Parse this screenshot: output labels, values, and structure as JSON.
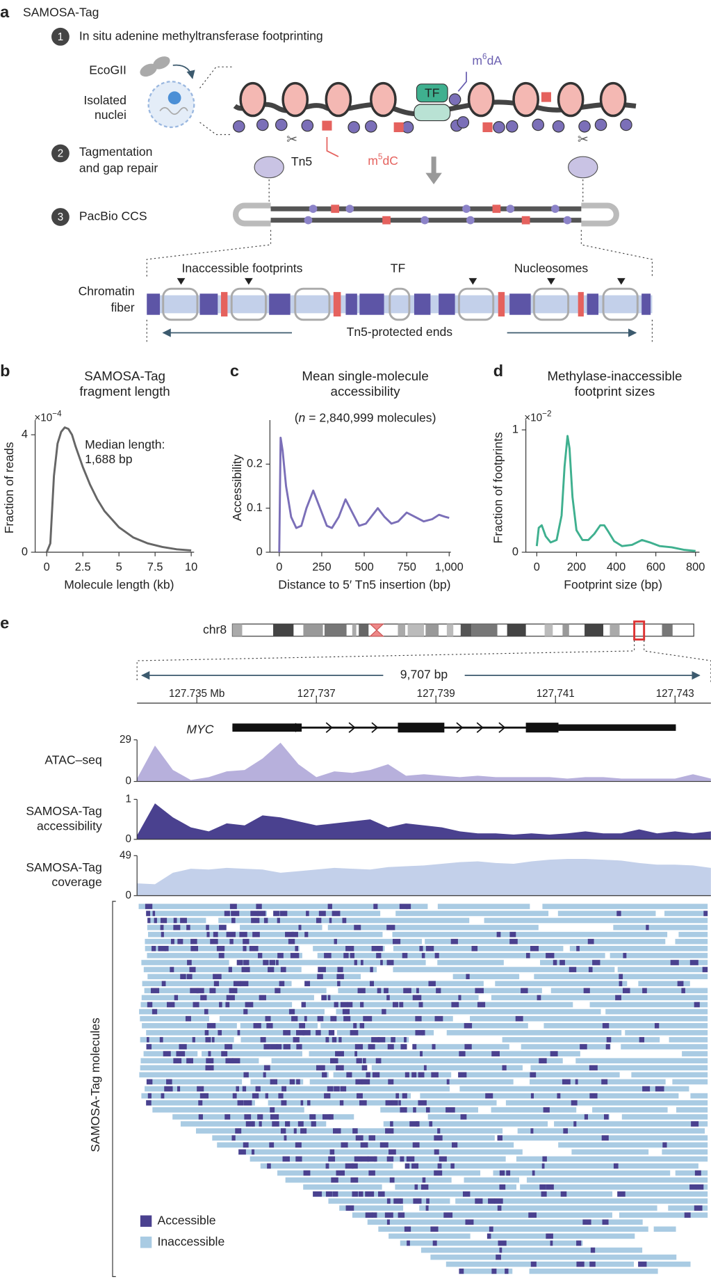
{
  "panel_a": {
    "label": "a",
    "title": "SAMOSA-Tag",
    "steps": [
      {
        "number": "1",
        "text": [
          "In situ adenine methyltransferase footprinting"
        ]
      },
      {
        "number": "2",
        "text": [
          "Tagmentation",
          "and gap repair"
        ]
      },
      {
        "number": "3",
        "text": [
          "PacBio CCS"
        ]
      }
    ],
    "enzyme": "EcoGII",
    "nuclei": [
      "Isolated",
      "nuclei"
    ],
    "m6dA": {
      "base": "m",
      "sup": "6",
      "rest": "dA"
    },
    "tf": "TF",
    "m5dC": {
      "base": "m",
      "sup": "5",
      "rest": "dC"
    },
    "tn5": "Tn5",
    "fiber_labels": [
      "Inaccessible footprints",
      "TF",
      "Nucleosomes"
    ],
    "fiber": [
      "Chromatin",
      "fiber"
    ],
    "ends": "Tn5-protected ends"
  },
  "chart_data": [
    {
      "type": "line",
      "panel": "b",
      "title": [
        "SAMOSA-Tag",
        "fragment length"
      ],
      "multiplier": {
        "base": "×10",
        "sup": "−4"
      },
      "annotation": [
        "Median length:",
        "1,688 bp"
      ],
      "xlabel": "Molecule length (kb)",
      "ylabel": "Fraction of reads",
      "x": [
        0,
        0.25,
        0.5,
        0.75,
        1,
        1.25,
        1.5,
        1.75,
        2,
        2.5,
        3,
        3.5,
        4,
        5,
        6,
        7,
        8,
        9,
        10
      ],
      "values": [
        0,
        0.3,
        2.6,
        3.7,
        4.1,
        4.25,
        4.2,
        4.0,
        3.6,
        2.9,
        2.3,
        1.8,
        1.4,
        0.85,
        0.5,
        0.3,
        0.18,
        0.1,
        0.06
      ],
      "color": "#666666",
      "xlim": [
        -0.8,
        10.2
      ],
      "ylim": [
        0,
        4.5
      ],
      "xticks": [
        0,
        2.5,
        5,
        7.5,
        10
      ],
      "yticks": [
        0,
        4
      ]
    },
    {
      "type": "line",
      "panel": "c",
      "title": [
        "Mean single-molecule",
        "accessibility"
      ],
      "subtitle": {
        "pre": "(",
        "italic": "n",
        "post": " = 2,840,999 molecules)"
      },
      "xlabel": "Distance to 5′ Tn5 insertion (bp)",
      "ylabel": "Accessibility",
      "x": [
        0,
        8,
        20,
        40,
        70,
        100,
        130,
        160,
        200,
        240,
        280,
        310,
        350,
        390,
        430,
        470,
        510,
        540,
        580,
        620,
        660,
        700,
        750,
        800,
        850,
        900,
        940,
        980,
        1000
      ],
      "values": [
        0,
        0.26,
        0.23,
        0.15,
        0.08,
        0.055,
        0.06,
        0.1,
        0.14,
        0.1,
        0.06,
        0.055,
        0.08,
        0.12,
        0.09,
        0.06,
        0.065,
        0.08,
        0.1,
        0.08,
        0.065,
        0.07,
        0.09,
        0.08,
        0.07,
        0.075,
        0.085,
        0.08,
        0.078
      ],
      "color": "#7b6fb8",
      "xlim": [
        -55,
        1010
      ],
      "ylim": [
        0,
        0.3
      ],
      "xticks": [
        0,
        250,
        500,
        750,
        {
          "value": 1000,
          "label": "1,000"
        }
      ],
      "yticks": [
        0,
        0.1,
        0.2
      ]
    },
    {
      "type": "line",
      "panel": "d",
      "title": [
        "Methylase-inaccessible",
        "footprint sizes"
      ],
      "multiplier": {
        "base": "×10",
        "sup": "−2"
      },
      "xlabel": "Footprint size (bp)",
      "ylabel": "Fraction of footprints",
      "x": [
        0,
        10,
        25,
        45,
        70,
        100,
        125,
        140,
        155,
        165,
        180,
        200,
        230,
        260,
        290,
        320,
        340,
        360,
        390,
        430,
        480,
        530,
        570,
        620,
        680,
        740,
        800
      ],
      "values": [
        0.05,
        0.2,
        0.22,
        0.13,
        0.08,
        0.1,
        0.3,
        0.7,
        0.95,
        0.85,
        0.45,
        0.18,
        0.1,
        0.1,
        0.15,
        0.22,
        0.22,
        0.17,
        0.09,
        0.05,
        0.06,
        0.1,
        0.08,
        0.05,
        0.04,
        0.02,
        0.01
      ],
      "color": "#3fb08f",
      "xlim": [
        -55,
        820
      ],
      "ylim": [
        0,
        1.08
      ],
      "xticks": [
        0,
        200,
        400,
        600,
        800
      ],
      "yticks": [
        0,
        1
      ]
    },
    {
      "type": "axis",
      "xlim": [
        127.734,
        127.7436
      ],
      "xticks": [
        {
          "value": 127.735,
          "label": "127.735 Mb"
        },
        127.737,
        127.739,
        127.741,
        127.743
      ]
    },
    {
      "type": "area",
      "label": [
        "ATAC–seq"
      ],
      "x": [
        127.734,
        127.7343,
        127.7346,
        127.7349,
        127.7352,
        127.7355,
        127.7358,
        127.7361,
        127.7364,
        127.7367,
        127.737,
        127.7373,
        127.7376,
        127.7379,
        127.7382,
        127.7385,
        127.7388,
        127.7391,
        127.7394,
        127.7397,
        127.74,
        127.7403,
        127.7406,
        127.7409,
        127.7412,
        127.7415,
        127.7418,
        127.7421,
        127.7424,
        127.7427,
        127.743,
        127.7433,
        127.7436
      ],
      "values": [
        2,
        25,
        8,
        1,
        3,
        7,
        8,
        16,
        27,
        12,
        3,
        7,
        6,
        8,
        12,
        4,
        5,
        4,
        3,
        4,
        3,
        3,
        3,
        3,
        2,
        3,
        3,
        2,
        2,
        2,
        2,
        5,
        2
      ],
      "color": "#b7b0dc",
      "xlim": [
        127.734,
        127.7436
      ],
      "ylim": [
        0,
        29
      ],
      "yticks": [
        0,
        29
      ]
    },
    {
      "type": "area",
      "label": [
        "SAMOSA-Tag",
        "accessibility"
      ],
      "x": [
        127.734,
        127.7343,
        127.7346,
        127.7349,
        127.7352,
        127.7355,
        127.7358,
        127.7361,
        127.7364,
        127.7367,
        127.737,
        127.7373,
        127.7376,
        127.7379,
        127.7382,
        127.7385,
        127.7388,
        127.7391,
        127.7394,
        127.7397,
        127.74,
        127.7403,
        127.7406,
        127.7409,
        127.7412,
        127.7415,
        127.7418,
        127.7421,
        127.7424,
        127.7427,
        127.743,
        127.7433,
        127.7436
      ],
      "values": [
        0.1,
        0.9,
        0.55,
        0.3,
        0.2,
        0.4,
        0.35,
        0.6,
        0.55,
        0.45,
        0.35,
        0.4,
        0.45,
        0.5,
        0.3,
        0.4,
        0.35,
        0.3,
        0.2,
        0.15,
        0.15,
        0.12,
        0.15,
        0.12,
        0.15,
        0.2,
        0.15,
        0.15,
        0.25,
        0.15,
        0.2,
        0.15,
        0.2
      ],
      "color": "#4a418f",
      "xlim": [
        127.734,
        127.7436
      ],
      "ylim": [
        0,
        1
      ],
      "yticks": [
        0,
        1
      ]
    },
    {
      "type": "area",
      "label": [
        "SAMOSA-Tag",
        "coverage"
      ],
      "x": [
        127.734,
        127.7343,
        127.7346,
        127.7349,
        127.7352,
        127.7355,
        127.7358,
        127.7361,
        127.7364,
        127.7367,
        127.737,
        127.7373,
        127.7376,
        127.7379,
        127.7382,
        127.7385,
        127.7388,
        127.7391,
        127.7394,
        127.7397,
        127.74,
        127.7403,
        127.7406,
        127.7409,
        127.7412,
        127.7415,
        127.7418,
        127.7421,
        127.7424,
        127.7427,
        127.743,
        127.7433,
        127.7436
      ],
      "values": [
        15,
        14,
        28,
        33,
        32,
        34,
        33,
        32,
        28,
        30,
        32,
        34,
        33,
        32,
        35,
        36,
        37,
        39,
        41,
        42,
        40,
        39,
        42,
        44,
        45,
        45,
        44,
        43,
        40,
        38,
        38,
        37,
        34
      ],
      "color": "#c3d0ea",
      "xlim": [
        127.734,
        127.7436
      ],
      "ylim": [
        0,
        49
      ],
      "yticks": [
        0,
        49
      ]
    }
  ],
  "panel_e": {
    "label": "e",
    "chromosome": "chr8",
    "span": "9,707 bp",
    "gene": "MYC",
    "molecules": "SAMOSA-Tag molecules",
    "legend": [
      {
        "name": "Accessible",
        "color": "#4a418f"
      },
      {
        "name": "Inaccessible",
        "color": "#a9cbe3"
      }
    ]
  }
}
